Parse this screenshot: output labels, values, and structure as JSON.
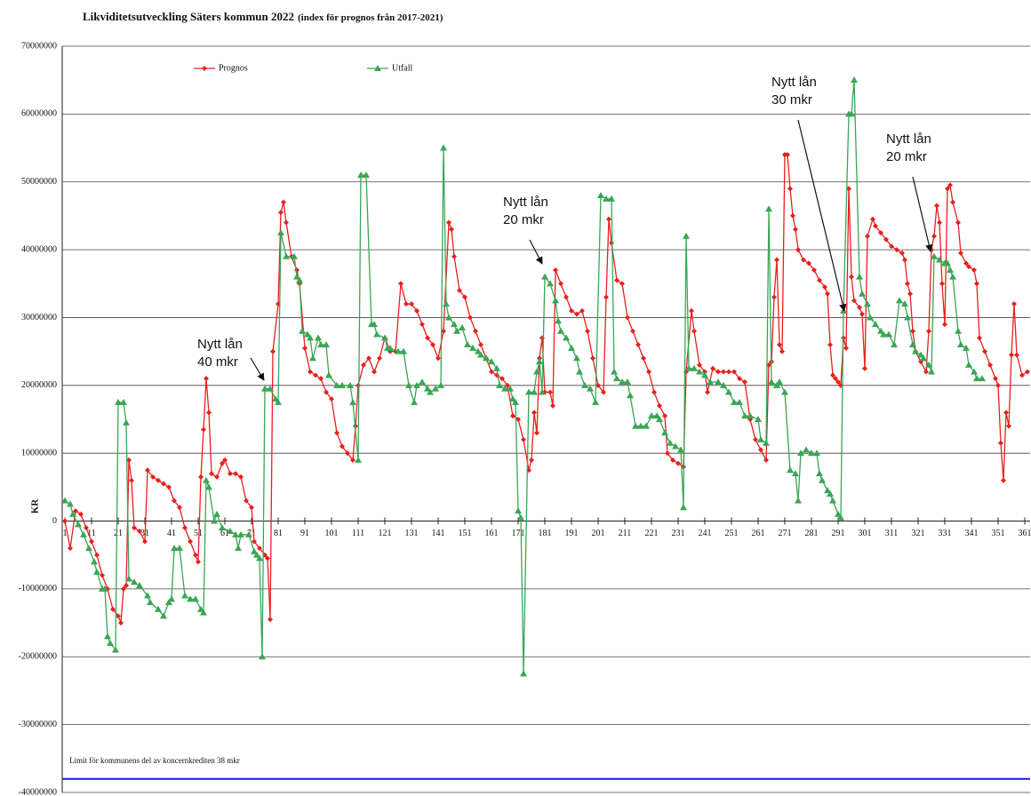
{
  "chart_data": {
    "type": "line",
    "title": "Likviditetsutveckling Säters kommun 2022",
    "subtitle": "(index för prognos från 2017-2021)",
    "y_label": "KR",
    "xlim": [
      0,
      363
    ],
    "xticks": [
      1,
      11,
      21,
      31,
      41,
      51,
      61,
      71,
      81,
      91,
      101,
      111,
      121,
      131,
      141,
      151,
      161,
      171,
      181,
      191,
      201,
      211,
      221,
      231,
      241,
      251,
      261,
      271,
      281,
      291,
      301,
      311,
      321,
      331,
      341,
      351,
      361
    ],
    "ylim": [
      -40000000,
      70000000
    ],
    "yticks": [
      -40000000,
      -30000000,
      -20000000,
      -10000000,
      0,
      10000000,
      20000000,
      30000000,
      40000000,
      50000000,
      60000000,
      70000000
    ],
    "grid": true,
    "series": [
      {
        "name": "Prognos",
        "color": "#e8201c",
        "marker": "diamond",
        "x": [
          1,
          3,
          5,
          7,
          9,
          11,
          13,
          15,
          17,
          19,
          21,
          22,
          23,
          24,
          25,
          26,
          27,
          29,
          31,
          32,
          34,
          36,
          38,
          40,
          42,
          44,
          46,
          48,
          50,
          51,
          52,
          53,
          54,
          55,
          56,
          58,
          60,
          61,
          63,
          65,
          67,
          69,
          71,
          72,
          74,
          76,
          77,
          78,
          79,
          81,
          82,
          83,
          84,
          86,
          88,
          89,
          91,
          93,
          95,
          97,
          99,
          101,
          103,
          105,
          107,
          109,
          110,
          111,
          113,
          115,
          117,
          119,
          121,
          123,
          125,
          127,
          129,
          131,
          133,
          135,
          137,
          139,
          141,
          143,
          145,
          146,
          147,
          149,
          151,
          153,
          155,
          157,
          159,
          161,
          163,
          165,
          167,
          169,
          171,
          173,
          175,
          176,
          177,
          178,
          179,
          180,
          181,
          183,
          184,
          185,
          187,
          189,
          191,
          193,
          195,
          197,
          199,
          201,
          203,
          204,
          205,
          206,
          208,
          210,
          212,
          214,
          216,
          218,
          220,
          222,
          224,
          226,
          227,
          229,
          231,
          233,
          234,
          236,
          237,
          239,
          241,
          242,
          244,
          246,
          248,
          250,
          252,
          254,
          256,
          258,
          260,
          262,
          264,
          265,
          266,
          267,
          268,
          269,
          270,
          271,
          272,
          273,
          274,
          275,
          276,
          278,
          280,
          282,
          284,
          286,
          287,
          288,
          289,
          290,
          291,
          292,
          293,
          294,
          295,
          296,
          297,
          299,
          300,
          301,
          302,
          304,
          305,
          307,
          309,
          311,
          313,
          315,
          316,
          317,
          318,
          319,
          320,
          322,
          324,
          325,
          326,
          327,
          328,
          329,
          330,
          331,
          332,
          333,
          334,
          336,
          337,
          339,
          340,
          342,
          343,
          344,
          346,
          348,
          350,
          351,
          352,
          353,
          354,
          355,
          356,
          357,
          358,
          360,
          362
        ],
        "values": [
          0,
          -4000000,
          1500000,
          1000000,
          -1000000,
          -3000000,
          -5000000,
          -8000000,
          -10000000,
          -13000000,
          -14000000,
          -15000000,
          -10000000,
          -9500000,
          9000000,
          6000000,
          -1000000,
          -1500000,
          -3000000,
          7500000,
          6500000,
          6000000,
          5500000,
          5000000,
          3000000,
          2000000,
          -1000000,
          -3000000,
          -5000000,
          -6000000,
          6500000,
          13500000,
          21000000,
          16000000,
          7000000,
          6500000,
          8500000,
          9000000,
          7000000,
          7000000,
          6500000,
          3000000,
          2000000,
          -3000000,
          -4000000,
          -5000000,
          -5500000,
          -14500000,
          25000000,
          32000000,
          45500000,
          47000000,
          44000000,
          39000000,
          37000000,
          35000000,
          25500000,
          22000000,
          21500000,
          21000000,
          19000000,
          18000000,
          13000000,
          11000000,
          10000000,
          9000000,
          14000000,
          20000000,
          23000000,
          24000000,
          22000000,
          24000000,
          27000000,
          25000000,
          25000000,
          35000000,
          32000000,
          32000000,
          31000000,
          29000000,
          27000000,
          26000000,
          24000000,
          28000000,
          44000000,
          43000000,
          39000000,
          34000000,
          33000000,
          30000000,
          28000000,
          26000000,
          24000000,
          22000000,
          21500000,
          21000000,
          20000000,
          15500000,
          15000000,
          12000000,
          7500000,
          9000000,
          16000000,
          13000000,
          24000000,
          27000000,
          19000000,
          19000000,
          17000000,
          37000000,
          35000000,
          33000000,
          31000000,
          30500000,
          31000000,
          28000000,
          24000000,
          20000000,
          19000000,
          33000000,
          44500000,
          41000000,
          35500000,
          35000000,
          30000000,
          28000000,
          26000000,
          24000000,
          22000000,
          19000000,
          17000000,
          15500000,
          10000000,
          9000000,
          8500000,
          8000000,
          22000000,
          31000000,
          28000000,
          23000000,
          22000000,
          19000000,
          22500000,
          22000000,
          22000000,
          22000000,
          22000000,
          21000000,
          20500000,
          15000000,
          12000000,
          10500000,
          9000000,
          23000000,
          23500000,
          33000000,
          38500000,
          26000000,
          25000000,
          54000000,
          54000000,
          49000000,
          45000000,
          43000000,
          40000000,
          38500000,
          38000000,
          37000000,
          35500000,
          34500000,
          33500000,
          26000000,
          21500000,
          21000000,
          20500000,
          20000000,
          27000000,
          25500000,
          49000000,
          36000000,
          32500000,
          31500000,
          30500000,
          22500000,
          42000000,
          44500000,
          43500000,
          42500000,
          41500000,
          40500000,
          40000000,
          39500000,
          38500000,
          35000000,
          33500000,
          28000000,
          25000000,
          23500000,
          22000000,
          28000000,
          40000000,
          42000000,
          46500000,
          44000000,
          35000000,
          29000000,
          49000000,
          49500000,
          47000000,
          44000000,
          39500000,
          38000000,
          37500000,
          37000000,
          35000000,
          27000000,
          25000000,
          23000000,
          21000000,
          20000000,
          11500000,
          6000000,
          16000000,
          14000000,
          24500000,
          32000000,
          24500000,
          21500000,
          22000000
        ]
      },
      {
        "name": "Utfall",
        "color": "#3aa655",
        "marker": "triangle",
        "x": [
          1,
          3,
          4,
          6,
          8,
          10,
          12,
          13,
          15,
          16,
          17,
          18,
          20,
          21,
          23,
          24,
          25,
          27,
          29,
          32,
          33,
          36,
          38,
          40,
          41,
          42,
          44,
          46,
          48,
          50,
          52,
          53,
          54,
          55,
          57,
          58,
          60,
          63,
          65,
          66,
          67,
          70,
          72,
          73,
          74,
          75,
          76,
          78,
          80,
          81,
          82,
          84,
          87,
          88,
          89,
          90,
          92,
          93,
          94,
          96,
          97,
          99,
          100,
          103,
          105,
          108,
          109,
          111,
          112,
          114,
          116,
          117,
          118,
          121,
          122,
          123,
          126,
          128,
          130,
          132,
          133,
          135,
          137,
          138,
          140,
          142,
          143,
          144,
          145,
          147,
          148,
          150,
          152,
          154,
          156,
          157,
          159,
          161,
          163,
          164,
          166,
          168,
          169,
          170,
          171,
          172,
          173,
          175,
          177,
          178,
          179,
          180,
          181,
          183,
          185,
          186,
          187,
          189,
          191,
          193,
          194,
          196,
          198,
          200,
          202,
          204,
          206,
          207,
          208,
          210,
          212,
          213,
          215,
          217,
          219,
          221,
          223,
          224,
          226,
          228,
          230,
          232,
          233,
          234,
          235,
          237,
          239,
          241,
          243,
          246,
          248,
          250,
          252,
          254,
          256,
          258,
          261,
          262,
          264,
          265,
          266,
          268,
          269,
          271,
          273,
          275,
          276,
          277,
          279,
          281,
          283,
          284,
          285,
          287,
          288,
          289,
          291,
          292,
          293,
          295,
          296,
          297,
          299,
          300,
          302,
          303,
          305,
          307,
          308,
          310,
          312,
          314,
          316,
          317,
          319,
          320,
          322,
          323,
          325,
          326,
          327,
          329,
          331,
          332,
          333,
          334,
          336,
          337,
          339,
          340,
          342,
          343,
          345
        ],
        "values": [
          3000000,
          2500000,
          1000000,
          -500000,
          -2000000,
          -4000000,
          -6000000,
          -7500000,
          -10000000,
          -10000000,
          -17000000,
          -18000000,
          -19000000,
          17500000,
          17500000,
          14500000,
          -8500000,
          -9000000,
          -9500000,
          -11000000,
          -12000000,
          -13000000,
          -14000000,
          -12000000,
          -11500000,
          -4000000,
          -4000000,
          -11000000,
          -11500000,
          -11500000,
          -13000000,
          -13500000,
          6000000,
          5000000,
          0,
          1000000,
          -1000000,
          -1500000,
          -2000000,
          -4000000,
          -2000000,
          -2000000,
          -4500000,
          -5000000,
          -5500000,
          -20000000,
          19500000,
          19500000,
          18000000,
          17500000,
          42500000,
          39000000,
          39000000,
          36000000,
          35500000,
          28000000,
          27500000,
          27000000,
          24000000,
          27000000,
          26000000,
          26000000,
          21500000,
          20000000,
          20000000,
          20000000,
          17500000,
          9000000,
          51000000,
          51000000,
          29000000,
          29000000,
          27500000,
          27000000,
          25500000,
          25500000,
          25000000,
          25000000,
          20000000,
          17500000,
          20000000,
          20500000,
          19500000,
          19000000,
          19500000,
          20000000,
          55000000,
          32000000,
          30000000,
          29000000,
          28000000,
          28500000,
          26000000,
          25500000,
          25000000,
          24500000,
          24000000,
          23500000,
          22500000,
          20000000,
          19500000,
          19500000,
          18000000,
          17500000,
          1500000,
          500000,
          -22500000,
          19000000,
          19000000,
          22000000,
          23500000,
          19000000,
          36000000,
          35000000,
          32500000,
          29500000,
          28000000,
          27000000,
          25500000,
          24000000,
          22000000,
          20000000,
          19500000,
          17500000,
          48000000,
          47500000,
          47500000,
          22000000,
          21000000,
          20500000,
          20500000,
          18500000,
          14000000,
          14000000,
          14000000,
          15500000,
          15500000,
          15000000,
          13000000,
          11500000,
          11000000,
          10500000,
          2000000,
          42000000,
          22500000,
          22500000,
          22000000,
          21500000,
          20500000,
          20500000,
          20000000,
          19000000,
          17500000,
          17500000,
          15500000,
          15500000,
          15000000,
          12000000,
          11500000,
          46000000,
          20500000,
          20000000,
          20500000,
          19000000,
          7500000,
          7000000,
          3000000,
          10000000,
          10500000,
          10000000,
          10000000,
          7000000,
          6000000,
          4500000,
          4000000,
          3000000,
          1000000,
          500000,
          31000000,
          60000000,
          60000000,
          65000000,
          36000000,
          33500000,
          32000000,
          30000000,
          29000000,
          28000000,
          27500000,
          27500000,
          26000000,
          32500000,
          32000000,
          30000000,
          26000000,
          25000000,
          24500000,
          24000000,
          23000000,
          22000000,
          39000000,
          38500000,
          38000000,
          38000000,
          37000000,
          36000000,
          28000000,
          26000000,
          25500000,
          23000000,
          22000000,
          21000000,
          21000000
        ]
      }
    ],
    "annotations": [
      [
        "Nytt lån",
        "40 mkr"
      ],
      [
        "Nytt lån",
        "20 mkr"
      ],
      [
        "Nytt lån",
        "30 mkr"
      ],
      [
        "Nytt lån",
        "20 mkr"
      ]
    ],
    "limit": {
      "label": "Limit för kommunens del av koncernkrediten 38 mkr",
      "value": -38000000,
      "color": "#1a1adb"
    }
  }
}
